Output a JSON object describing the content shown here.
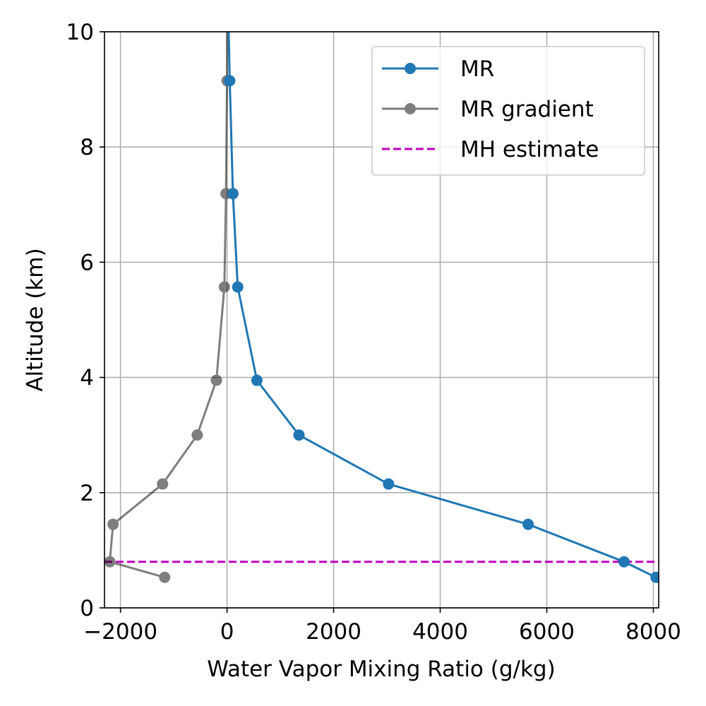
{
  "chart_data": {
    "type": "line",
    "xlabel": "Water Vapor Mixing Ratio (g/kg)",
    "ylabel": "Altitude (km)",
    "xlim": [
      -2300,
      8100
    ],
    "ylim": [
      0,
      10
    ],
    "xticks": [
      -2000,
      0,
      2000,
      4000,
      6000,
      8000
    ],
    "xtick_labels": [
      "−2000",
      "0",
      "2000",
      "4000",
      "6000",
      "8000"
    ],
    "yticks": [
      0,
      2,
      4,
      6,
      8,
      10
    ],
    "ytick_labels": [
      "0",
      "2",
      "4",
      "6",
      "8",
      "10"
    ],
    "grid": true,
    "legend_position": "top-right",
    "series": [
      {
        "name": "MR",
        "color": "#1f77b4",
        "style": "line-marker",
        "alpha": 1,
        "points": [
          {
            "x": 8050,
            "y": 0.53
          },
          {
            "x": 7450,
            "y": 0.8
          },
          {
            "x": 5650,
            "y": 1.45
          },
          {
            "x": 3030,
            "y": 2.15
          },
          {
            "x": 1350,
            "y": 3.0
          },
          {
            "x": 560,
            "y": 3.95
          },
          {
            "x": 200,
            "y": 5.57
          },
          {
            "x": 110,
            "y": 7.19
          },
          {
            "x": 50,
            "y": 9.15
          },
          {
            "x": 20,
            "y": 10.5
          }
        ]
      },
      {
        "name": "MR gradient",
        "color": "#000000",
        "style": "line-marker",
        "alpha": 0.5,
        "points": [
          {
            "x": -1170,
            "y": 0.53
          },
          {
            "x": -2200,
            "y": 0.8
          },
          {
            "x": -2140,
            "y": 1.45
          },
          {
            "x": -1210,
            "y": 2.15
          },
          {
            "x": -560,
            "y": 3.0
          },
          {
            "x": -200,
            "y": 3.95
          },
          {
            "x": -50,
            "y": 5.57
          },
          {
            "x": -20,
            "y": 7.19
          },
          {
            "x": 0,
            "y": 9.15
          },
          {
            "x": 0,
            "y": 10.5
          }
        ]
      },
      {
        "name": "MH estimate",
        "color": "#bf00bf",
        "style": "dashed-hline",
        "y": 0.8
      }
    ]
  }
}
